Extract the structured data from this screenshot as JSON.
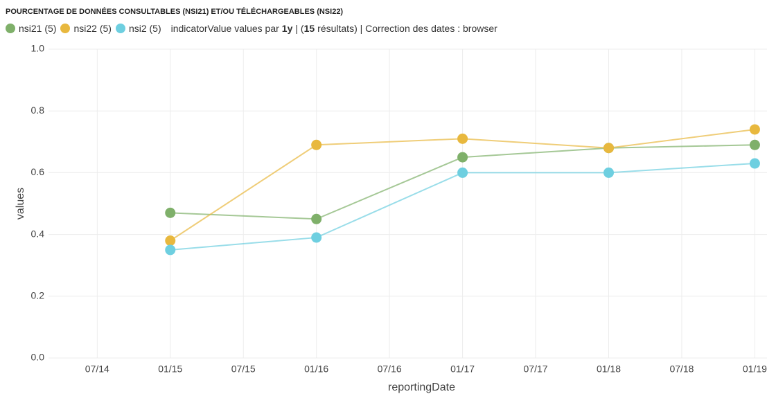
{
  "chart_data": {
    "type": "line",
    "title": "POURCENTAGE DE DONNÉES CONSULTABLES (NSI21) ET/OU TÉLÉCHARGEABLES (NSI22)",
    "legend_info": [
      "indicatorValue values par",
      "1y",
      "| (",
      "15",
      "résultats) | Correction des dates : browser"
    ],
    "x_label": "reportingDate",
    "y_label": "values",
    "x": [
      "01/15",
      "01/16",
      "01/17",
      "01/18",
      "01/19"
    ],
    "xlim": [
      "03/14",
      "02/19"
    ],
    "xticks": [
      "07/14",
      "01/15",
      "07/15",
      "01/16",
      "07/16",
      "01/17",
      "07/17",
      "01/18",
      "07/18",
      "01/19"
    ],
    "ylim": [
      0,
      1
    ],
    "yticks": [
      {
        "value": 0,
        "label": "0.0"
      },
      0.2,
      0.4,
      0.6,
      0.8,
      {
        "value": 1,
        "label": "1.0"
      }
    ],
    "grid": true,
    "series": [
      {
        "name": "nsi21 (5)",
        "color": "#7fb06a",
        "values": [
          0.47,
          0.45,
          0.65,
          0.68,
          0.69
        ]
      },
      {
        "name": "nsi22 (5)",
        "color": "#e8b83e",
        "values": [
          0.38,
          0.69,
          0.71,
          0.68,
          0.74
        ]
      },
      {
        "name": "nsi2 (5)",
        "color": "#6ecfe0",
        "values": [
          0.35,
          0.39,
          0.6,
          0.6,
          0.63
        ]
      }
    ]
  }
}
